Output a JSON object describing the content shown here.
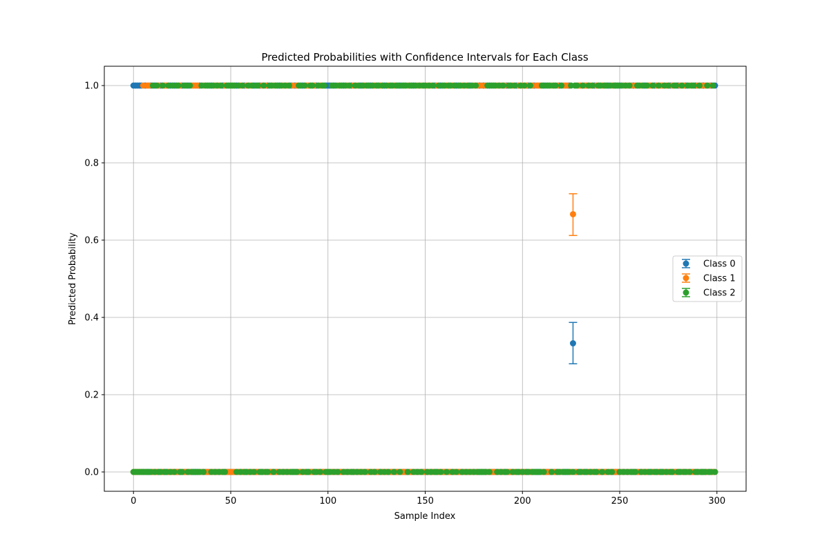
{
  "chart_data": {
    "type": "scatter",
    "title": "Predicted Probabilities with Confidence Intervals for Each Class",
    "xlabel": "Sample Index",
    "ylabel": "Predicted Probability",
    "xlim": [
      -15,
      315
    ],
    "ylim": [
      -0.05,
      1.05
    ],
    "xticks": [
      0,
      50,
      100,
      150,
      200,
      250,
      300
    ],
    "yticks": [
      0.0,
      0.2,
      0.4,
      0.6,
      0.8,
      1.0
    ],
    "xtick_labels": [
      "0",
      "50",
      "100",
      "150",
      "200",
      "250",
      "300"
    ],
    "ytick_labels": [
      "0.0",
      "0.2",
      "0.4",
      "0.6",
      "0.8",
      "1.0"
    ],
    "grid": true,
    "legend_position": "center-right",
    "n_samples": 300,
    "series": [
      {
        "name": "Class 0",
        "color": "#1f77b4",
        "marker": "circle",
        "error_bars": true,
        "highlight": {
          "x": 226,
          "y": 0.333,
          "lower": 0.28,
          "upper": 0.387
        }
      },
      {
        "name": "Class 1",
        "color": "#ff7f0e",
        "marker": "circle",
        "error_bars": true,
        "highlight": {
          "x": 226,
          "y": 0.667,
          "lower": 0.612,
          "upper": 0.72
        }
      },
      {
        "name": "Class 2",
        "color": "#2ca02c",
        "marker": "circle",
        "error_bars": true
      }
    ],
    "top_samples_by_class": {
      "Class 0": [
        0,
        1,
        2,
        3,
        4,
        6,
        9,
        11,
        14,
        19,
        21,
        25,
        28,
        34,
        40,
        46,
        53,
        57,
        62,
        65,
        69,
        75,
        81,
        83,
        87,
        94,
        99,
        100,
        101,
        103,
        108,
        112,
        117,
        122,
        129,
        137,
        144,
        155,
        158,
        166,
        173,
        178,
        180,
        183,
        192,
        197,
        203,
        206,
        211,
        219,
        224,
        237,
        244,
        250,
        257,
        263,
        268,
        276,
        280,
        284,
        289,
        293,
        297,
        299
      ],
      "Class 1": [
        5,
        7,
        8,
        13,
        16,
        17,
        24,
        30,
        31,
        32,
        33,
        36,
        42,
        44,
        47,
        55,
        58,
        60,
        66,
        68,
        72,
        77,
        79,
        82,
        84,
        89,
        90,
        93,
        96,
        105,
        110,
        113,
        115,
        119,
        124,
        127,
        131,
        134,
        141,
        146,
        148,
        151,
        153,
        156,
        161,
        164,
        169,
        171,
        175,
        177,
        179,
        181,
        187,
        189,
        191,
        195,
        198,
        200,
        202,
        205,
        207,
        208,
        209,
        215,
        218,
        221,
        222,
        223,
        226,
        229,
        230,
        232,
        233,
        235,
        238,
        241,
        246,
        252,
        254,
        256,
        258,
        261,
        265,
        266,
        269,
        271,
        272,
        274,
        277,
        281,
        283,
        286,
        290,
        292,
        294,
        296
      ],
      "Class 2": [
        10,
        12,
        15,
        18,
        20,
        22,
        23,
        26,
        27,
        29,
        35,
        37,
        38,
        39,
        41,
        43,
        45,
        48,
        49,
        50,
        51,
        52,
        54,
        56,
        59,
        61,
        63,
        64,
        67,
        70,
        71,
        73,
        74,
        76,
        78,
        80,
        85,
        86,
        88,
        91,
        92,
        95,
        97,
        98,
        102,
        104,
        106,
        107,
        109,
        111,
        114,
        116,
        118,
        120,
        121,
        123,
        125,
        126,
        128,
        130,
        132,
        133,
        135,
        136,
        138,
        139,
        140,
        142,
        143,
        145,
        147,
        149,
        150,
        152,
        154,
        157,
        159,
        160,
        162,
        163,
        165,
        167,
        168,
        170,
        172,
        174,
        176,
        182,
        184,
        185,
        186,
        188,
        190,
        193,
        194,
        196,
        199,
        201,
        204,
        210,
        212,
        213,
        214,
        216,
        217,
        220,
        225,
        227,
        228,
        231,
        234,
        236,
        239,
        240,
        242,
        243,
        245,
        247,
        248,
        249,
        251,
        253,
        255,
        259,
        260,
        262,
        264,
        267,
        270,
        273,
        275,
        278,
        279,
        282,
        285,
        287,
        288,
        291,
        295,
        298
      ]
    }
  }
}
